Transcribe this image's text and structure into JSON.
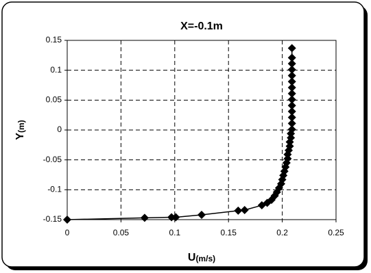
{
  "chart_data": {
    "type": "scatter",
    "title": "X=-0.1m",
    "xlabel": {
      "main": "U",
      "unit": "(m/s)"
    },
    "ylabel": {
      "main": "Y",
      "unit": "(m)"
    },
    "x": [
      0,
      0.072,
      0.097,
      0.101,
      0.125,
      0.159,
      0.165,
      0.181,
      0.186,
      0.19,
      0.193,
      0.195,
      0.197,
      0.199,
      0.2,
      0.201,
      0.202,
      0.203,
      0.204,
      0.205,
      0.205,
      0.206,
      0.207,
      0.207,
      0.208,
      0.208,
      0.209,
      0.209,
      0.209,
      0.209,
      0.209,
      0.209,
      0.209,
      0.209,
      0.209,
      0.209,
      0.209,
      0.209,
      0.209,
      0.209
    ],
    "values": [
      -0.15,
      -0.147,
      -0.146,
      -0.146,
      -0.142,
      -0.135,
      -0.134,
      -0.126,
      -0.122,
      -0.117,
      -0.11,
      -0.104,
      -0.097,
      -0.09,
      -0.083,
      -0.076,
      -0.069,
      -0.062,
      -0.055,
      -0.048,
      -0.041,
      -0.034,
      -0.027,
      -0.02,
      -0.013,
      -0.006,
      0.001,
      0.011,
      0.021,
      0.031,
      0.041,
      0.051,
      0.061,
      0.071,
      0.081,
      0.091,
      0.101,
      0.111,
      0.121,
      0.137
    ],
    "color": "#000000",
    "xlim": [
      0,
      0.25
    ],
    "xticks": [
      0,
      0.05,
      0.1,
      0.15,
      0.2,
      0.25
    ],
    "ylim": [
      -0.15,
      0.15
    ],
    "yticks": [
      -0.15,
      -0.1,
      -0.05,
      0,
      0.05,
      0.1,
      0.15
    ],
    "grid": true
  }
}
